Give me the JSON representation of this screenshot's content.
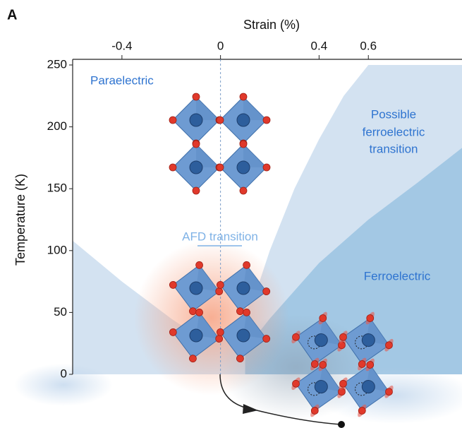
{
  "panel_label": "A",
  "chart_data": {
    "type": "phase",
    "xlabel": "Strain (%)",
    "ylabel": "Temperature (K)",
    "xlim": [
      -0.6,
      0.98
    ],
    "ylim": [
      0,
      250
    ],
    "xticks": [
      -0.4,
      0,
      0.4,
      0.6
    ],
    "yticks": [
      0,
      50,
      100,
      150,
      200,
      250
    ],
    "annotations": {
      "paraelectric": "Paraelectric",
      "possible": [
        "Possible",
        "ferroelectric",
        "transition"
      ],
      "afd": "AFD transition",
      "ferroelectric": "Ferroelectric"
    },
    "series": [
      {
        "color": "#d3e2f1",
        "x": [
          -0.6,
          -0.4,
          -0.2,
          -0.05,
          0.05,
          0.15,
          0.2,
          0.3,
          0.4,
          0.5,
          0.6,
          0.98
        ],
        "values": [
          108,
          75,
          45,
          25,
          30,
          70,
          100,
          150,
          190,
          225,
          250,
          250
        ]
      },
      {
        "color": "#a3c8e4",
        "x": [
          0.1,
          0.2,
          0.4,
          0.6,
          0.8,
          0.98
        ],
        "values": [
          20,
          45,
          90,
          125,
          155,
          183
        ]
      }
    ]
  }
}
